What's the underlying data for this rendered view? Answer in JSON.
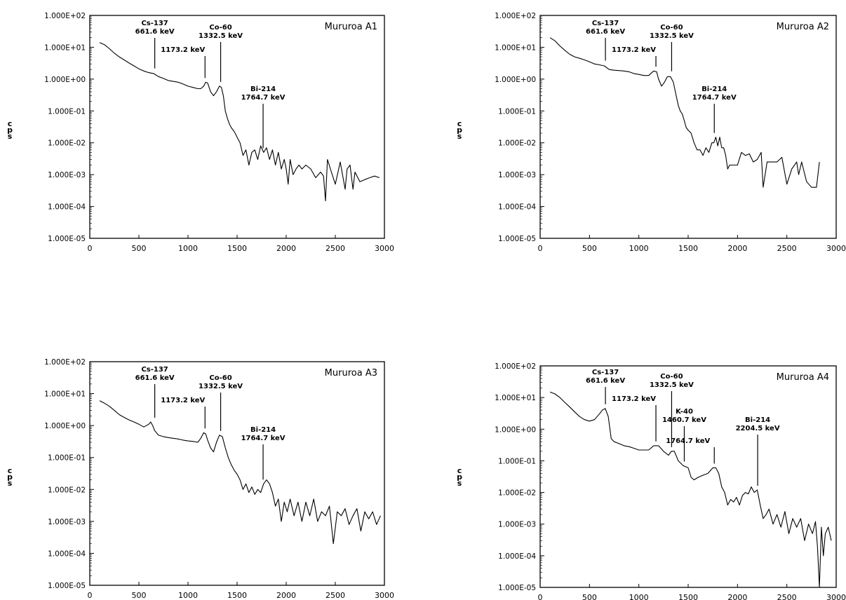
{
  "chart_data": [
    {
      "type": "line",
      "title": "Mururoa A1",
      "ylabel": "cps",
      "xlabel": "",
      "xlim": [
        0,
        3000
      ],
      "ylim": [
        1e-05,
        100
      ],
      "yscale": "log",
      "xticks": [
        "0",
        "500",
        "1000",
        "1500",
        "2000",
        "2500",
        "3000"
      ],
      "yticks": [
        "1.000E+02",
        "1.000E+01",
        "1.000E+00",
        "1.000E-01",
        "1.000E-02",
        "1.000E-03",
        "1.000E-04",
        "1.000E-05"
      ],
      "grid": false,
      "series": [
        {
          "x": [
            100,
            150,
            200,
            250,
            300,
            350,
            400,
            450,
            500,
            550,
            600,
            650,
            700,
            750,
            800,
            850,
            900,
            950,
            1000,
            1050,
            1100,
            1130,
            1160,
            1180,
            1200,
            1230,
            1260,
            1290,
            1320,
            1340,
            1360,
            1380,
            1400,
            1420,
            1440,
            1460,
            1480,
            1500,
            1530,
            1560,
            1590,
            1620,
            1650,
            1680,
            1710,
            1740,
            1770,
            1800,
            1830,
            1860,
            1890,
            1920,
            1950,
            1980,
            2000,
            2020,
            2040,
            2070,
            2100,
            2130,
            2160,
            2200,
            2250,
            2300,
            2350,
            2380,
            2400,
            2420,
            2460,
            2500,
            2550,
            2600,
            2620,
            2650,
            2680,
            2700,
            2750,
            2800,
            2850,
            2900,
            2950
          ],
          "y": [
            14,
            12,
            9,
            6.5,
            5,
            4,
            3.2,
            2.6,
            2.1,
            1.8,
            1.6,
            1.5,
            1.2,
            1.05,
            0.9,
            0.85,
            0.8,
            0.7,
            0.6,
            0.55,
            0.5,
            0.5,
            0.6,
            0.8,
            0.75,
            0.4,
            0.3,
            0.4,
            0.6,
            0.55,
            0.3,
            0.1,
            0.06,
            0.04,
            0.03,
            0.025,
            0.02,
            0.015,
            0.01,
            0.004,
            0.006,
            0.002,
            0.005,
            0.006,
            0.003,
            0.008,
            0.005,
            0.007,
            0.003,
            0.006,
            0.002,
            0.005,
            0.0015,
            0.003,
            0.0015,
            0.0005,
            0.003,
            0.001,
            0.0015,
            0.002,
            0.0015,
            0.002,
            0.0015,
            0.0008,
            0.0012,
            0.0009,
            0.00015,
            0.003,
            0.0012,
            0.0005,
            0.0025,
            0.00035,
            0.0015,
            0.002,
            0.00035,
            0.0012,
            0.0006,
            0.0007,
            0.0008,
            0.0009,
            0.0008
          ]
        }
      ],
      "annotations": [
        {
          "lines": [
            "Cs-137",
            "661.6 keV"
          ],
          "x": 661.6,
          "y": 1.6
        },
        {
          "lines": [
            "1173.2 keV"
          ],
          "x": 1173.2,
          "y": 0.8
        },
        {
          "lines": [
            "Co-60",
            "1332.5 keV"
          ],
          "x": 1332.5,
          "y": 0.6
        },
        {
          "lines": [
            "Bi-214",
            "1764.7 keV"
          ],
          "x": 1764.7,
          "y": 0.005
        }
      ]
    },
    {
      "type": "line",
      "title": "Mururoa A2",
      "ylabel": "cps",
      "xlabel": "",
      "xlim": [
        0,
        3000
      ],
      "ylim": [
        1e-05,
        100
      ],
      "yscale": "log",
      "xticks": [
        "0",
        "500",
        "1000",
        "1500",
        "2000",
        "2500",
        "3000"
      ],
      "yticks": [
        "1.000E+02",
        "1.000E+01",
        "1.000E+00",
        "1.000E-01",
        "1.000E-02",
        "1.000E-03",
        "1.000E-04",
        "1.000E-05"
      ],
      "grid": false,
      "series": [
        {
          "x": [
            100,
            150,
            200,
            250,
            300,
            350,
            400,
            450,
            500,
            550,
            600,
            650,
            700,
            750,
            800,
            850,
            900,
            950,
            1000,
            1050,
            1100,
            1150,
            1180,
            1200,
            1230,
            1260,
            1290,
            1320,
            1350,
            1370,
            1400,
            1420,
            1440,
            1460,
            1480,
            1500,
            1530,
            1560,
            1590,
            1620,
            1650,
            1680,
            1710,
            1740,
            1760,
            1780,
            1800,
            1820,
            1840,
            1860,
            1880,
            1900,
            1920,
            1960,
            2000,
            2040,
            2080,
            2120,
            2160,
            2200,
            2240,
            2260,
            2300,
            2350,
            2400,
            2450,
            2500,
            2550,
            2600,
            2620,
            2650,
            2700,
            2750,
            2800,
            2830
          ],
          "y": [
            20,
            16,
            11,
            8,
            6,
            5,
            4.5,
            4,
            3.5,
            3,
            2.8,
            2.6,
            2,
            1.9,
            1.85,
            1.8,
            1.7,
            1.5,
            1.4,
            1.3,
            1.3,
            1.8,
            1.7,
            1.0,
            0.6,
            0.8,
            1.2,
            1.2,
            0.8,
            0.4,
            0.15,
            0.1,
            0.08,
            0.05,
            0.03,
            0.025,
            0.02,
            0.01,
            0.006,
            0.006,
            0.004,
            0.007,
            0.005,
            0.01,
            0.01,
            0.015,
            0.008,
            0.015,
            0.007,
            0.007,
            0.004,
            0.0015,
            0.002,
            0.002,
            0.002,
            0.005,
            0.004,
            0.0045,
            0.0025,
            0.003,
            0.005,
            0.0004,
            0.0025,
            0.0025,
            0.0025,
            0.0035,
            0.0005,
            0.0015,
            0.0025,
            0.001,
            0.0025,
            0.0006,
            0.0004,
            0.0004,
            0.0025
          ]
        }
      ],
      "annotations": [
        {
          "lines": [
            "Cs-137",
            "661.6 keV"
          ],
          "x": 661.6,
          "y": 2.8
        },
        {
          "lines": [
            "1173.2 keV"
          ],
          "x": 1173.2,
          "y": 1.8
        },
        {
          "lines": [
            "Co-60",
            "1332.5 keV"
          ],
          "x": 1332.5,
          "y": 1.3
        },
        {
          "lines": [
            "Bi-214",
            "1764.7 keV"
          ],
          "x": 1764.7,
          "y": 0.015
        }
      ]
    },
    {
      "type": "line",
      "title": "Mururoa A3",
      "ylabel": "cps",
      "xlabel": "",
      "xlim": [
        0,
        3000
      ],
      "ylim": [
        1e-05,
        100
      ],
      "yscale": "log",
      "xticks": [
        "0",
        "500",
        "1000",
        "1500",
        "2000",
        "2500",
        "3000"
      ],
      "yticks": [
        "1.000E+02",
        "1.000E+01",
        "1.000E+00",
        "1.000E-01",
        "1.000E-02",
        "1.000E-03",
        "1.000E-04",
        "1.000E-05"
      ],
      "grid": false,
      "series": [
        {
          "x": [
            100,
            150,
            200,
            250,
            300,
            350,
            400,
            450,
            500,
            550,
            600,
            620,
            640,
            660,
            700,
            750,
            800,
            850,
            900,
            950,
            1000,
            1050,
            1100,
            1130,
            1160,
            1180,
            1200,
            1230,
            1260,
            1290,
            1320,
            1350,
            1380,
            1410,
            1440,
            1470,
            1500,
            1530,
            1560,
            1590,
            1620,
            1650,
            1680,
            1710,
            1740,
            1770,
            1800,
            1830,
            1860,
            1890,
            1920,
            1950,
            1980,
            2010,
            2040,
            2080,
            2120,
            2160,
            2200,
            2240,
            2280,
            2320,
            2360,
            2400,
            2440,
            2480,
            2520,
            2560,
            2600,
            2640,
            2680,
            2720,
            2760,
            2800,
            2840,
            2880,
            2920,
            2960
          ],
          "y": [
            6,
            5,
            4,
            3,
            2.2,
            1.8,
            1.5,
            1.3,
            1.1,
            0.9,
            1.1,
            1.3,
            1.0,
            0.7,
            0.5,
            0.45,
            0.42,
            0.4,
            0.38,
            0.35,
            0.33,
            0.32,
            0.3,
            0.4,
            0.6,
            0.55,
            0.35,
            0.2,
            0.15,
            0.3,
            0.5,
            0.45,
            0.2,
            0.1,
            0.06,
            0.04,
            0.03,
            0.02,
            0.01,
            0.015,
            0.008,
            0.012,
            0.007,
            0.01,
            0.008,
            0.015,
            0.02,
            0.015,
            0.008,
            0.003,
            0.005,
            0.001,
            0.004,
            0.002,
            0.005,
            0.0015,
            0.004,
            0.001,
            0.004,
            0.0015,
            0.005,
            0.001,
            0.002,
            0.0015,
            0.003,
            0.0002,
            0.002,
            0.0015,
            0.0025,
            0.0008,
            0.0015,
            0.0025,
            0.0005,
            0.002,
            0.0012,
            0.002,
            0.0008,
            0.0015
          ]
        }
      ],
      "annotations": [
        {
          "lines": [
            "Cs-137",
            "661.6 keV"
          ],
          "x": 661.6,
          "y": 1.3
        },
        {
          "lines": [
            "1173.2 keV"
          ],
          "x": 1173.2,
          "y": 0.6
        },
        {
          "lines": [
            "Co-60",
            "1332.5 keV"
          ],
          "x": 1332.5,
          "y": 0.5
        },
        {
          "lines": [
            "Bi-214",
            "1764.7 keV"
          ],
          "x": 1764.7,
          "y": 0.015
        }
      ]
    },
    {
      "type": "line",
      "title": "Mururoa A4",
      "ylabel": "cps",
      "xlabel": "",
      "xlim": [
        0,
        3000
      ],
      "ylim": [
        1e-05,
        100
      ],
      "yscale": "log",
      "xticks": [
        "0",
        "500",
        "1000",
        "1500",
        "2000",
        "2500",
        "3000"
      ],
      "yticks": [
        "1.000E+02",
        "1.000E+01",
        "1.000E+00",
        "1.000E-01",
        "1.000E-02",
        "1.000E-03",
        "1.000E-04",
        "1.000E-05"
      ],
      "grid": false,
      "series": [
        {
          "x": [
            100,
            150,
            200,
            250,
            300,
            350,
            400,
            450,
            500,
            550,
            600,
            630,
            660,
            690,
            720,
            750,
            800,
            850,
            900,
            950,
            1000,
            1050,
            1100,
            1150,
            1200,
            1250,
            1300,
            1330,
            1360,
            1400,
            1450,
            1500,
            1530,
            1560,
            1600,
            1650,
            1700,
            1750,
            1780,
            1810,
            1840,
            1870,
            1900,
            1930,
            1960,
            1990,
            2020,
            2050,
            2080,
            2110,
            2140,
            2170,
            2200,
            2230,
            2260,
            2290,
            2320,
            2360,
            2400,
            2440,
            2480,
            2520,
            2560,
            2600,
            2640,
            2680,
            2720,
            2760,
            2790,
            2810,
            2830,
            2850,
            2870,
            2890,
            2920,
            2950
          ],
          "y": [
            15,
            13,
            10,
            7,
            5,
            3.5,
            2.5,
            2,
            1.8,
            2,
            3,
            4,
            4.5,
            2.5,
            0.5,
            0.4,
            0.35,
            0.3,
            0.28,
            0.25,
            0.22,
            0.22,
            0.22,
            0.3,
            0.3,
            0.2,
            0.15,
            0.2,
            0.2,
            0.1,
            0.07,
            0.06,
            0.03,
            0.025,
            0.03,
            0.035,
            0.04,
            0.06,
            0.06,
            0.04,
            0.015,
            0.01,
            0.004,
            0.006,
            0.005,
            0.007,
            0.004,
            0.008,
            0.01,
            0.009,
            0.015,
            0.01,
            0.012,
            0.004,
            0.0015,
            0.002,
            0.003,
            0.001,
            0.002,
            0.0008,
            0.0025,
            0.0005,
            0.0015,
            0.0008,
            0.0015,
            0.0003,
            0.001,
            0.0005,
            0.0012,
            0.0002,
            1e-05,
            0.0008,
            0.0001,
            0.0005,
            0.0008,
            0.0003
          ]
        }
      ],
      "annotations": [
        {
          "lines": [
            "Cs-137",
            "661.6 keV"
          ],
          "x": 661.6,
          "y": 4.5
        },
        {
          "lines": [
            "1173.2 keV"
          ],
          "x": 1173.2,
          "y": 0.3
        },
        {
          "lines": [
            "Co-60",
            "1332.5 keV"
          ],
          "x": 1332.5,
          "y": 0.2
        },
        {
          "lines": [
            "K-40",
            "1460.7 keV"
          ],
          "x": 1460.7,
          "y": 0.07
        },
        {
          "lines": [
            "1764.7 keV"
          ],
          "x": 1764.7,
          "y": 0.06
        },
        {
          "lines": [
            "Bi-214",
            "2204.5 keV"
          ],
          "x": 2204.5,
          "y": 0.012
        }
      ]
    }
  ]
}
